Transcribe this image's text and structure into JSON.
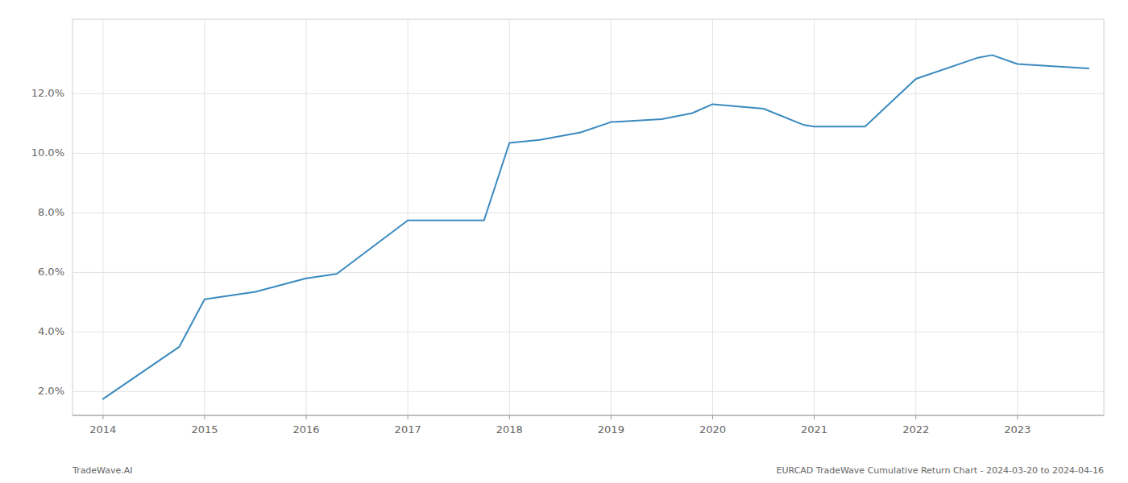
{
  "chart_data": {
    "type": "line",
    "x": [
      2014.0,
      2014.75,
      2015.0,
      2015.5,
      2016.0,
      2016.3,
      2017.0,
      2017.75,
      2018.0,
      2018.3,
      2018.7,
      2019.0,
      2019.5,
      2019.8,
      2020.0,
      2020.5,
      2020.9,
      2021.0,
      2021.5,
      2022.0,
      2022.6,
      2022.75,
      2023.0,
      2023.7
    ],
    "values": [
      1.75,
      3.5,
      5.1,
      5.35,
      5.8,
      5.95,
      7.75,
      7.75,
      10.35,
      10.45,
      10.7,
      11.05,
      11.15,
      11.35,
      11.65,
      11.5,
      10.95,
      10.9,
      10.9,
      12.5,
      13.2,
      13.3,
      13.0,
      12.85
    ],
    "color": "#3a8abf",
    "xlim": [
      2013.7,
      2023.85
    ],
    "ylim": [
      1.2,
      14.5
    ],
    "xticks": [
      2014,
      2015,
      2016,
      2017,
      2018,
      2019,
      2020,
      2021,
      2022,
      2023
    ],
    "yticks": [
      {
        "value": 2.0,
        "label": "2.0%"
      },
      {
        "value": 4.0,
        "label": "4.0%"
      },
      {
        "value": 6.0,
        "label": "6.0%"
      },
      {
        "value": 8.0,
        "label": "8.0%"
      },
      {
        "value": 10.0,
        "label": "10.0%"
      },
      {
        "value": 12.0,
        "label": "12.0%"
      }
    ],
    "grid": true,
    "annotations": [
      "TradeWave.AI",
      "EURCAD TradeWave Cumulative Return Chart - 2024-03-20 to 2024-04-16"
    ]
  }
}
